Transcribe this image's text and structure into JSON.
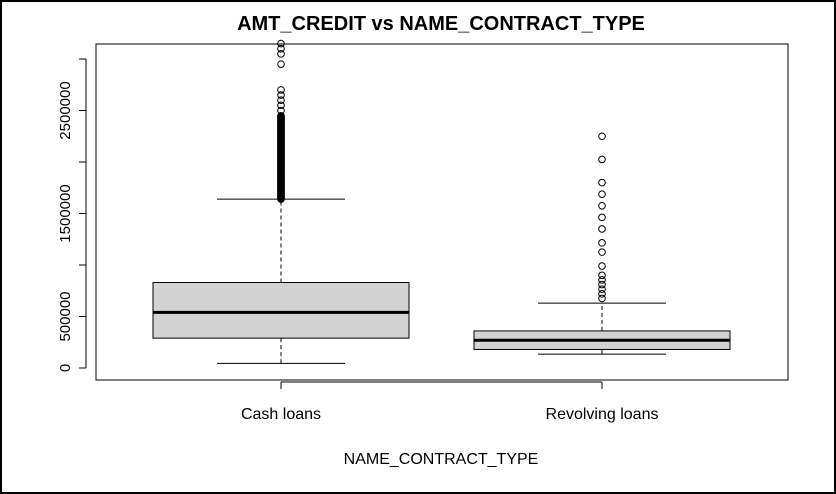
{
  "chart_data": {
    "type": "boxplot",
    "title": "AMT_CREDIT vs NAME_CONTRACT_TYPE",
    "xlabel": "NAME_CONTRACT_TYPE",
    "ylabel": "",
    "ylim": [
      0,
      3000000
    ],
    "yticks": [
      0,
      500000,
      1000000,
      1500000,
      2000000,
      2500000,
      3000000
    ],
    "ytick_labels": [
      "0",
      "500000",
      "",
      "1500000",
      "",
      "2500000",
      ""
    ],
    "categories": [
      "Cash loans",
      "Revolving loans"
    ],
    "series": [
      {
        "category": "Cash loans",
        "min": 45000,
        "q1": 290000,
        "median": 540000,
        "q3": 830000,
        "max": 1640000,
        "outliers_band": [
          1640000,
          2450000
        ],
        "outliers": [
          2500000,
          2550000,
          2600000,
          2650000,
          2700000,
          2950000,
          3050000,
          3100000,
          3150000
        ]
      },
      {
        "category": "Revolving loans",
        "min": 135000,
        "q1": 180000,
        "median": 270000,
        "q3": 360000,
        "max": 630000,
        "outliers": [
          675000,
          720000,
          765000,
          810000,
          855000,
          900000,
          990000,
          1125000,
          1215000,
          1350000,
          1462500,
          1575000,
          1687500,
          1800000,
          2025000,
          2250000
        ]
      }
    ],
    "colors": {
      "box_fill": "#d3d3d3",
      "line": "#000000"
    }
  }
}
